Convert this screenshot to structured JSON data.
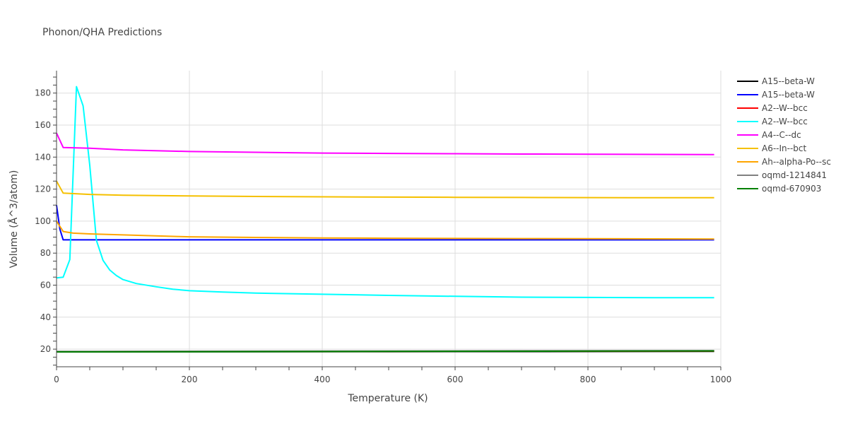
{
  "chart_data": {
    "type": "line",
    "title": "Phonon/QHA Predictions",
    "xlabel": "Temperature (K)",
    "ylabel": "Volume (Å^3/atom)",
    "xlim": [
      0,
      1000
    ],
    "ylim": [
      9,
      194
    ],
    "x_ticks": [
      0,
      200,
      400,
      600,
      800,
      1000
    ],
    "y_ticks": [
      20,
      40,
      60,
      80,
      100,
      120,
      140,
      160,
      180
    ],
    "grid": true,
    "legend_position": "right",
    "series": [
      {
        "name": "A15--beta-W",
        "color": "#000000",
        "x": [
          0,
          10,
          200,
          500,
          990
        ],
        "y": [
          18.3,
          18.3,
          18.35,
          18.45,
          18.6
        ]
      },
      {
        "name": "A15--beta-W",
        "color": "#0000ff",
        "x": [
          0,
          5,
          10,
          20,
          100,
          200,
          500,
          990
        ],
        "y": [
          110,
          95,
          88.3,
          88.3,
          88.3,
          88.3,
          88.3,
          88.3
        ]
      },
      {
        "name": "A2--W--bcc",
        "color": "#ff0000",
        "x": [
          0,
          200,
          500,
          990
        ],
        "y": [
          18.5,
          18.55,
          18.65,
          18.8
        ]
      },
      {
        "name": "A2--W--bcc",
        "color": "#00ffff",
        "x": [
          0,
          10,
          20,
          30,
          40,
          50,
          60,
          70,
          80,
          90,
          100,
          120,
          150,
          175,
          200,
          250,
          300,
          400,
          500,
          600,
          700,
          800,
          900,
          990
        ],
        "y": [
          64.5,
          65,
          76,
          184,
          172,
          135,
          88,
          75.5,
          69.5,
          66,
          63.5,
          61,
          59,
          57.5,
          56.5,
          55.7,
          55,
          54.3,
          53.6,
          53,
          52.5,
          52.3,
          52.2,
          52.2
        ]
      },
      {
        "name": "A4--C--dc",
        "color": "#ff00ff",
        "x": [
          0,
          10,
          50,
          100,
          200,
          300,
          400,
          500,
          600,
          700,
          800,
          900,
          990
        ],
        "y": [
          155,
          146,
          145.5,
          144.5,
          143.5,
          143,
          142.5,
          142.3,
          142.1,
          141.9,
          141.8,
          141.7,
          141.6
        ]
      },
      {
        "name": "A6--In--bct",
        "color": "#f5c000",
        "x": [
          0,
          10,
          50,
          100,
          200,
          300,
          400,
          500,
          600,
          700,
          800,
          900,
          990
        ],
        "y": [
          125,
          117.5,
          116.7,
          116.2,
          115.7,
          115.4,
          115.2,
          115.0,
          114.9,
          114.8,
          114.7,
          114.6,
          114.6
        ]
      },
      {
        "name": "Ah--alpha-Po--sc",
        "color": "#ffa500",
        "x": [
          0,
          10,
          25,
          50,
          100,
          180,
          200,
          300,
          400,
          500,
          600,
          700,
          800,
          900,
          990
        ],
        "y": [
          100,
          93.5,
          92.5,
          92,
          91.4,
          90.4,
          90.2,
          89.8,
          89.5,
          89.3,
          89.2,
          89.1,
          89.0,
          88.9,
          88.8
        ]
      },
      {
        "name": "oqmd-1214841",
        "color": "#808080",
        "x": [
          0,
          200,
          500,
          990
        ],
        "y": [
          18.6,
          18.7,
          18.85,
          19.1
        ]
      },
      {
        "name": "oqmd-670903",
        "color": "#008000",
        "x": [
          0,
          200,
          500,
          990
        ],
        "y": [
          18.3,
          18.4,
          18.6,
          18.9
        ]
      }
    ]
  }
}
